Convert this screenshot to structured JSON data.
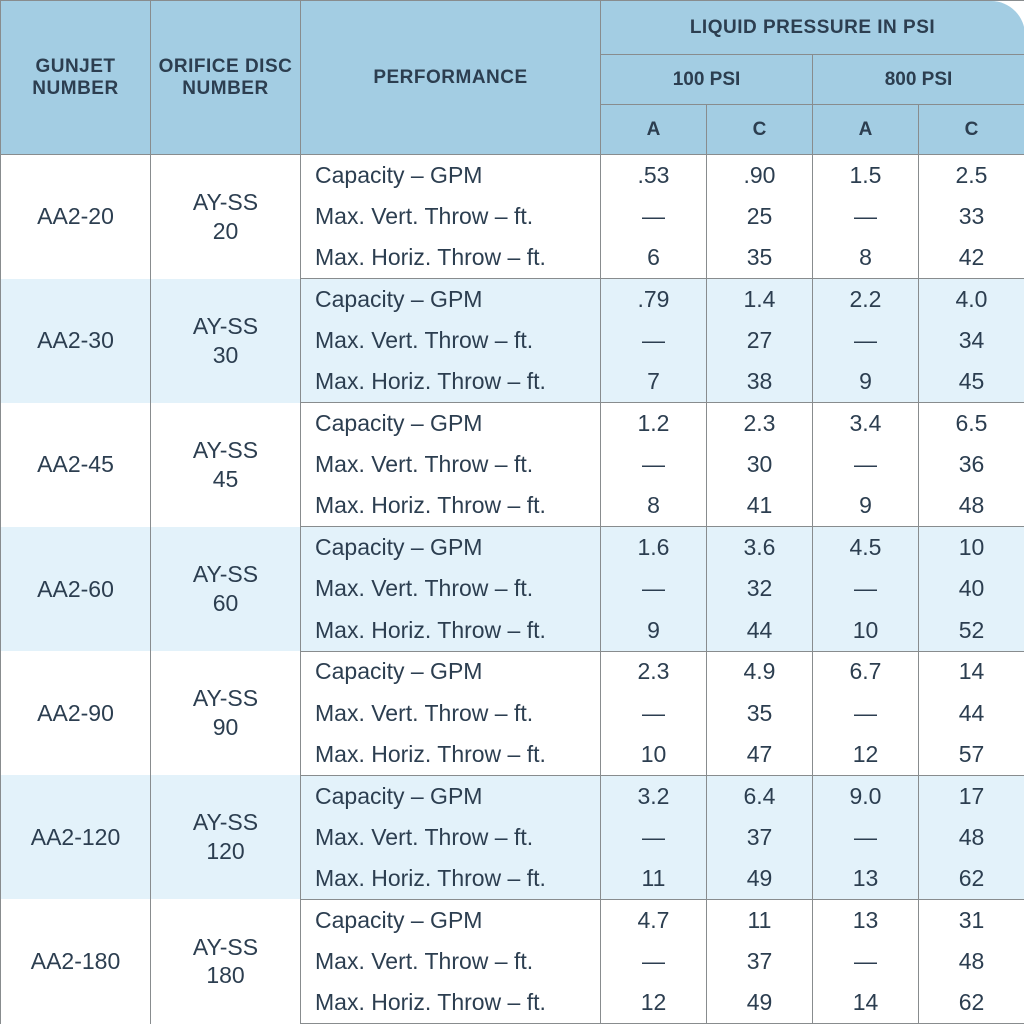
{
  "type": "table",
  "colors": {
    "header_bg": "#a3cde3",
    "band_light": "#ffffff",
    "band_dark": "#e3f2fa",
    "border": "#888c8e",
    "text": "#2c3e50"
  },
  "fontsize": {
    "header": 19,
    "body": 23
  },
  "header": {
    "gunjet": "GUNJET NUMBER",
    "orifice": "ORIFICE DISC NUMBER",
    "performance": "PERFORMANCE",
    "pressure_title": "LIQUID PRESSURE IN PSI",
    "psi100": "100 PSI",
    "psi800": "800 PSI",
    "colA": "A",
    "colC": "C"
  },
  "perf_labels": {
    "cap": "Capacity – GPM",
    "vert": "Max. Vert. Throw – ft.",
    "horiz": "Max. Horiz. Throw – ft."
  },
  "groups": [
    {
      "gunjet": "AA2-20",
      "orifice_l1": "AY-SS",
      "orifice_l2": "20",
      "rows": [
        {
          "p": "cap",
          "v": [
            ".53",
            ".90",
            "1.5",
            "2.5"
          ]
        },
        {
          "p": "vert",
          "v": [
            "—",
            "25",
            "—",
            "33"
          ]
        },
        {
          "p": "horiz",
          "v": [
            "6",
            "35",
            "8",
            "42"
          ]
        }
      ]
    },
    {
      "gunjet": "AA2-30",
      "orifice_l1": "AY-SS",
      "orifice_l2": "30",
      "rows": [
        {
          "p": "cap",
          "v": [
            ".79",
            "1.4",
            "2.2",
            "4.0"
          ]
        },
        {
          "p": "vert",
          "v": [
            "—",
            "27",
            "—",
            "34"
          ]
        },
        {
          "p": "horiz",
          "v": [
            "7",
            "38",
            "9",
            "45"
          ]
        }
      ]
    },
    {
      "gunjet": "AA2-45",
      "orifice_l1": "AY-SS",
      "orifice_l2": "45",
      "rows": [
        {
          "p": "cap",
          "v": [
            "1.2",
            "2.3",
            "3.4",
            "6.5"
          ]
        },
        {
          "p": "vert",
          "v": [
            "—",
            "30",
            "—",
            "36"
          ]
        },
        {
          "p": "horiz",
          "v": [
            "8",
            "41",
            "9",
            "48"
          ]
        }
      ]
    },
    {
      "gunjet": "AA2-60",
      "orifice_l1": "AY-SS",
      "orifice_l2": "60",
      "rows": [
        {
          "p": "cap",
          "v": [
            "1.6",
            "3.6",
            "4.5",
            "10"
          ]
        },
        {
          "p": "vert",
          "v": [
            "—",
            "32",
            "—",
            "40"
          ]
        },
        {
          "p": "horiz",
          "v": [
            "9",
            "44",
            "10",
            "52"
          ]
        }
      ]
    },
    {
      "gunjet": "AA2-90",
      "orifice_l1": "AY-SS",
      "orifice_l2": "90",
      "rows": [
        {
          "p": "cap",
          "v": [
            "2.3",
            "4.9",
            "6.7",
            "14"
          ]
        },
        {
          "p": "vert",
          "v": [
            "—",
            "35",
            "—",
            "44"
          ]
        },
        {
          "p": "horiz",
          "v": [
            "10",
            "47",
            "12",
            "57"
          ]
        }
      ]
    },
    {
      "gunjet": "AA2-120",
      "orifice_l1": "AY-SS",
      "orifice_l2": "120",
      "rows": [
        {
          "p": "cap",
          "v": [
            "3.2",
            "6.4",
            "9.0",
            "17"
          ]
        },
        {
          "p": "vert",
          "v": [
            "—",
            "37",
            "—",
            "48"
          ]
        },
        {
          "p": "horiz",
          "v": [
            "11",
            "49",
            "13",
            "62"
          ]
        }
      ]
    },
    {
      "gunjet": "AA2-180",
      "orifice_l1": "AY-SS",
      "orifice_l2": "180",
      "rows": [
        {
          "p": "cap",
          "v": [
            "4.7",
            "11",
            "13",
            "31"
          ]
        },
        {
          "p": "vert",
          "v": [
            "—",
            "37",
            "—",
            "48"
          ]
        },
        {
          "p": "horiz",
          "v": [
            "12",
            "49",
            "14",
            "62"
          ]
        }
      ]
    }
  ]
}
